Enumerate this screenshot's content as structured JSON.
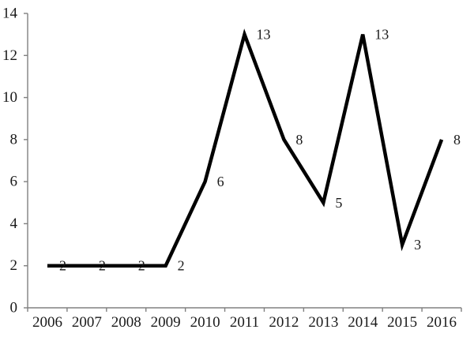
{
  "chart_data": {
    "type": "line",
    "title": "",
    "xlabel": "",
    "ylabel": "",
    "categories": [
      "2006",
      "2007",
      "2008",
      "2009",
      "2010",
      "2011",
      "2012",
      "2013",
      "2014",
      "2015",
      "2016"
    ],
    "series": [
      {
        "name": "",
        "values": [
          2,
          2,
          2,
          2,
          6,
          13,
          8,
          5,
          13,
          3,
          8
        ],
        "data_labels": [
          "2",
          "2",
          "2",
          "2",
          "6",
          "13",
          "8",
          "5",
          "13",
          "3",
          "8"
        ]
      }
    ],
    "ylim": [
      0,
      14
    ],
    "yticks": [
      0,
      2,
      4,
      6,
      8,
      10,
      12,
      14
    ],
    "grid": false,
    "legend_position": "none",
    "data_label_position": "right",
    "colors": {
      "line": "#000000",
      "axis": "#808080",
      "text": "#1a1a1a",
      "background": "#ffffff"
    }
  }
}
